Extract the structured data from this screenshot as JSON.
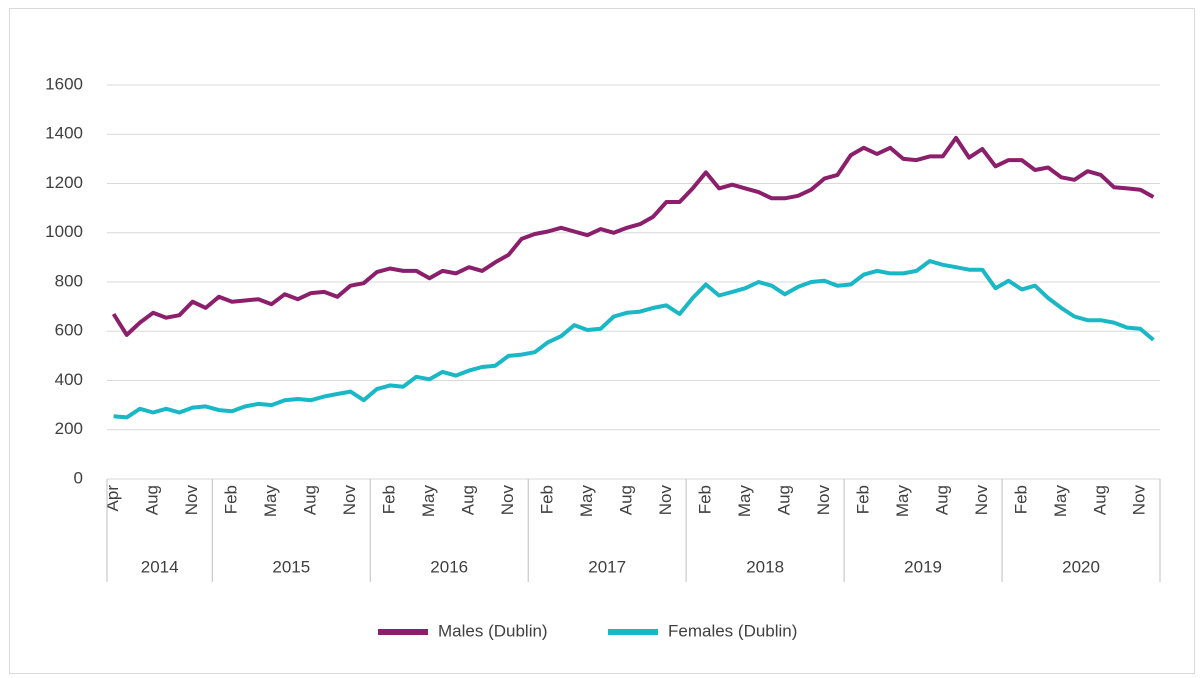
{
  "chart_data": {
    "type": "line",
    "categories": [
      "Apr",
      null,
      null,
      "Aug",
      null,
      null,
      "Nov",
      null,
      null,
      "Feb",
      null,
      null,
      "May",
      null,
      null,
      "Aug",
      null,
      null,
      "Nov",
      null,
      null,
      "Feb",
      null,
      null,
      "May",
      null,
      null,
      "Aug",
      null,
      null,
      "Nov",
      null,
      null,
      "Feb",
      null,
      null,
      "May",
      null,
      null,
      "Aug",
      null,
      null,
      "Nov",
      null,
      null,
      "Feb",
      null,
      null,
      "May",
      null,
      null,
      "Aug",
      null,
      null,
      "Nov",
      null,
      null,
      "Feb",
      null,
      null,
      "May",
      null,
      null,
      "Aug",
      null,
      null,
      "Nov",
      null,
      null,
      "Feb",
      null,
      null,
      "May",
      null,
      null,
      "Aug",
      null,
      null,
      "Nov",
      null
    ],
    "year_groups": [
      {
        "name": "2014",
        "months": 8
      },
      {
        "name": "2015",
        "months": 12
      },
      {
        "name": "2016",
        "months": 12
      },
      {
        "name": "2017",
        "months": 12
      },
      {
        "name": "2018",
        "months": 12
      },
      {
        "name": "2019",
        "months": 12
      },
      {
        "name": "2020",
        "months": 12
      }
    ],
    "series": [
      {
        "name": "Males (Dublin)",
        "color": "#8b1f6b",
        "values": [
          670,
          585,
          635,
          675,
          655,
          665,
          720,
          695,
          740,
          720,
          725,
          730,
          710,
          750,
          730,
          755,
          760,
          740,
          785,
          795,
          840,
          855,
          845,
          845,
          815,
          845,
          835,
          860,
          845,
          880,
          910,
          975,
          995,
          1005,
          1020,
          1005,
          990,
          1015,
          1000,
          1020,
          1035,
          1065,
          1125,
          1125,
          1180,
          1245,
          1180,
          1195,
          1180,
          1165,
          1140,
          1140,
          1150,
          1175,
          1220,
          1235,
          1315,
          1345,
          1320,
          1345,
          1300,
          1295,
          1310,
          1310,
          1385,
          1305,
          1340,
          1270,
          1295,
          1295,
          1255,
          1265,
          1225,
          1215,
          1250,
          1235,
          1185,
          1180,
          1175,
          1145
        ]
      },
      {
        "name": "Females (Dublin)",
        "color": "#1ab7c7",
        "values": [
          255,
          250,
          285,
          270,
          285,
          270,
          290,
          295,
          280,
          275,
          295,
          305,
          300,
          320,
          325,
          320,
          335,
          345,
          355,
          320,
          365,
          380,
          375,
          415,
          405,
          435,
          420,
          440,
          455,
          460,
          500,
          505,
          515,
          555,
          580,
          625,
          605,
          610,
          660,
          675,
          680,
          695,
          705,
          670,
          735,
          790,
          745,
          760,
          775,
          800,
          785,
          750,
          780,
          800,
          805,
          785,
          790,
          830,
          845,
          835,
          835,
          845,
          885,
          870,
          860,
          850,
          850,
          775,
          805,
          770,
          785,
          735,
          695,
          660,
          645,
          645,
          635,
          615,
          610,
          565
        ]
      }
    ],
    "ylim": [
      0,
      1600
    ],
    "yticks": [
      0,
      200,
      400,
      600,
      800,
      1000,
      1200,
      1400,
      1600
    ],
    "grid": true,
    "legend": "bottom"
  }
}
